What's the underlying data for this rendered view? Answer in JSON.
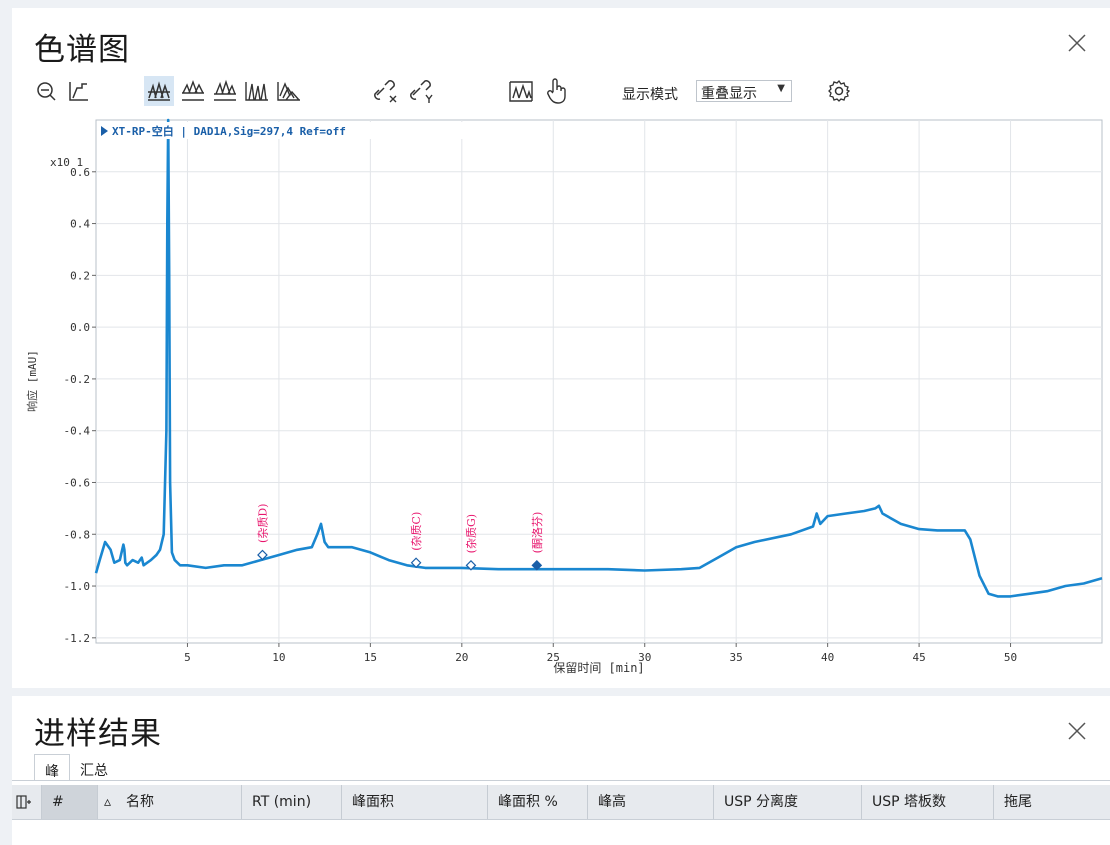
{
  "chromatogram_panel": {
    "title": "色谱图",
    "toolbar": {
      "icons": [
        "zoom-out-icon",
        "zoom-reset-icon",
        "overlay-icon",
        "stack-icon",
        "stack-offset-icon",
        "isometric-icon",
        "waterfall-icon",
        "link-x-icon",
        "link-y-icon",
        "peak-label-icon",
        "hand-pointer-icon"
      ],
      "display_mode_label": "显示模式",
      "display_mode_value": "重叠显示",
      "settings_icon": "gear-icon"
    }
  },
  "chart_data": {
    "type": "line",
    "signal_label": "XT-RP-空白 | DAD1A,Sig=297,4 Ref=off",
    "ylabel": "响应 [mAU]",
    "xlabel": "保留时间 [min]",
    "y_scale_label": "x10 1",
    "xlim": [
      0,
      55
    ],
    "ylim": [
      -1.22,
      0.8
    ],
    "x_ticks": [
      5,
      10,
      15,
      20,
      25,
      30,
      35,
      40,
      45,
      50
    ],
    "y_ticks": [
      0.6,
      0.4,
      0.2,
      0.0,
      -0.2,
      -0.4,
      -0.6,
      -0.8,
      -1.0,
      -1.2
    ],
    "y_tick_labels": [
      "0.6",
      "0.4",
      "0.2",
      "0.0",
      "-0.2",
      "-0.4",
      "-0.6",
      "-0.8",
      "-1.0",
      "-1.2"
    ],
    "grid": true,
    "line_color": "#1a87d0",
    "series": [
      {
        "x": [
          0.0,
          0.2,
          0.5,
          0.8,
          1.0,
          1.3,
          1.5,
          1.55,
          1.6,
          1.7,
          2.0,
          2.3,
          2.5,
          2.6,
          2.8,
          3.0,
          3.3,
          3.5,
          3.7,
          3.85,
          3.9,
          3.95,
          4.0,
          4.05,
          4.15,
          4.3,
          4.6,
          5.0,
          6.0,
          7.0,
          8.0,
          9.0,
          10.0,
          11.0,
          11.8,
          12.1,
          12.3,
          12.5,
          12.7,
          13.0,
          14.0,
          15.0,
          16.0,
          17.0,
          18.0,
          20.0,
          22.0,
          25.0,
          28.0,
          30.0,
          32.0,
          33.0,
          34.0,
          35.0,
          36.0,
          38.0,
          39.2,
          39.4,
          39.6,
          40.0,
          41.0,
          42.0,
          42.6,
          42.8,
          43.0,
          44.0,
          45.0,
          46.0,
          47.0,
          47.5,
          47.8,
          48.3,
          48.8,
          49.3,
          50.0,
          51.0,
          52.0,
          53.0,
          54.0,
          55.0
        ],
        "y": [
          -0.95,
          -0.9,
          -0.83,
          -0.86,
          -0.91,
          -0.9,
          -0.84,
          -0.86,
          -0.91,
          -0.92,
          -0.9,
          -0.91,
          -0.89,
          -0.92,
          -0.91,
          -0.9,
          -0.88,
          -0.86,
          -0.8,
          -0.4,
          0.4,
          0.85,
          0.2,
          -0.6,
          -0.87,
          -0.9,
          -0.92,
          -0.92,
          -0.93,
          -0.92,
          -0.92,
          -0.9,
          -0.88,
          -0.86,
          -0.85,
          -0.8,
          -0.76,
          -0.83,
          -0.85,
          -0.85,
          -0.85,
          -0.87,
          -0.9,
          -0.92,
          -0.93,
          -0.93,
          -0.935,
          -0.935,
          -0.935,
          -0.94,
          -0.935,
          -0.93,
          -0.89,
          -0.85,
          -0.83,
          -0.8,
          -0.77,
          -0.72,
          -0.76,
          -0.73,
          -0.72,
          -0.71,
          -0.7,
          -0.69,
          -0.72,
          -0.76,
          -0.78,
          -0.785,
          -0.785,
          -0.785,
          -0.82,
          -0.96,
          -1.03,
          -1.04,
          -1.04,
          -1.03,
          -1.02,
          -1.0,
          -0.99,
          -0.97
        ]
      }
    ],
    "annotations": [
      {
        "label": "(杂质D)",
        "x": 9.1,
        "y": -0.88,
        "filled": false,
        "color": "#e8156d"
      },
      {
        "label": "(杂质C)",
        "x": 17.5,
        "y": -0.91,
        "filled": false,
        "color": "#e8156d"
      },
      {
        "label": "(杂质G)",
        "x": 20.5,
        "y": -0.92,
        "filled": false,
        "color": "#e8156d"
      },
      {
        "label": "(酮洛芬)",
        "x": 24.1,
        "y": -0.92,
        "filled": true,
        "color": "#e8156d"
      }
    ]
  },
  "results_panel": {
    "title": "进样结果",
    "tabs": [
      "峰",
      "汇总"
    ],
    "columns": [
      "#",
      "名称",
      "RT (min)",
      "峰面积",
      "峰面积 %",
      "峰高",
      "USP 分离度",
      "USP 塔板数",
      "拖尾"
    ]
  }
}
